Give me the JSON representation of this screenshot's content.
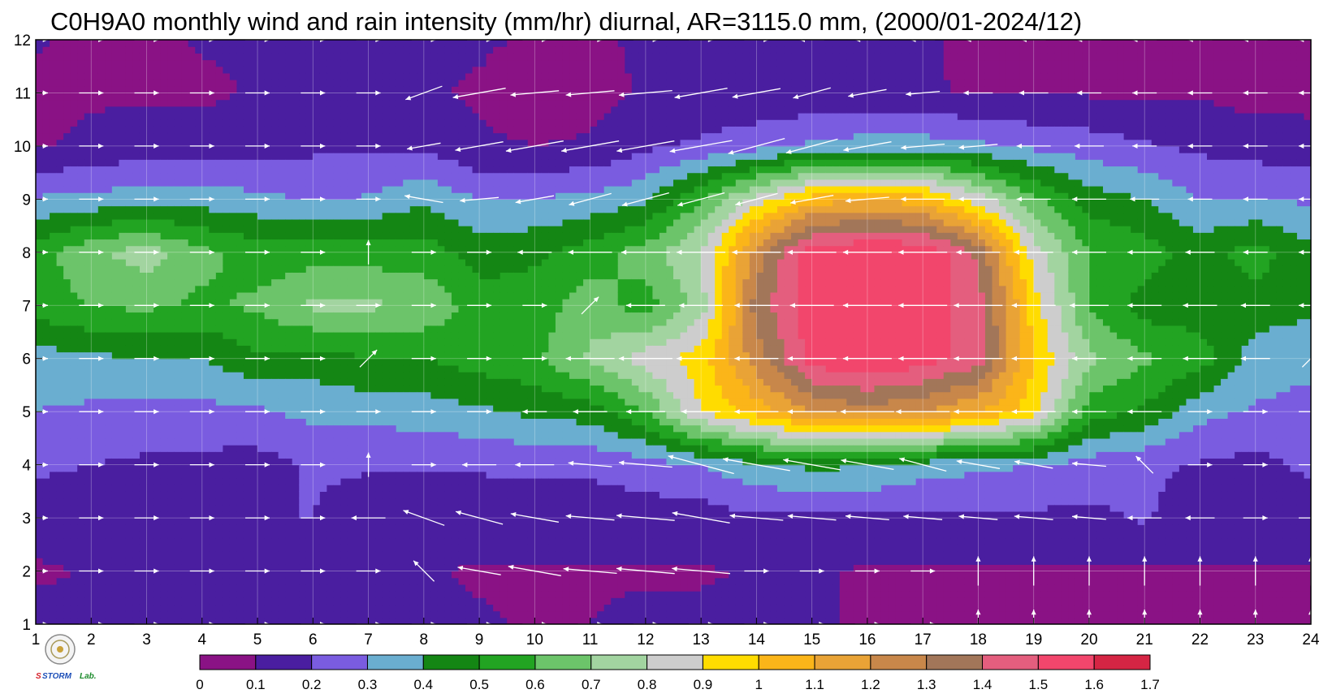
{
  "chart_data": {
    "type": "heatmap",
    "title": "C0H9A0 monthly wind and rain intensity (mm/hr) diurnal, AR=3115.0 mm, (2000/01-2024/12)",
    "xlabel": "",
    "ylabel": "",
    "x_ticks": [
      "1",
      "2",
      "3",
      "4",
      "5",
      "6",
      "7",
      "8",
      "9",
      "10",
      "11",
      "12",
      "13",
      "14",
      "15",
      "16",
      "17",
      "18",
      "19",
      "20",
      "21",
      "22",
      "23",
      "24"
    ],
    "y_ticks": [
      "1",
      "2",
      "3",
      "4",
      "5",
      "6",
      "7",
      "8",
      "9",
      "10",
      "11",
      "12"
    ],
    "xlim": [
      1,
      24
    ],
    "ylim": [
      1,
      12
    ],
    "grid": true,
    "x": [
      1,
      2,
      3,
      4,
      5,
      6,
      7,
      8,
      9,
      10,
      11,
      12,
      13,
      14,
      15,
      16,
      17,
      18,
      19,
      20,
      21,
      22,
      23,
      24
    ],
    "y": [
      1,
      2,
      3,
      4,
      5,
      6,
      7,
      8,
      9,
      10,
      11,
      12
    ],
    "z": [
      [
        0.15,
        0.12,
        0.1,
        0.1,
        0.11,
        0.11,
        0.11,
        0.11,
        0.11,
        0.09,
        0.1,
        0.12,
        0.12,
        0.11,
        0.11,
        0.09,
        0.09,
        0.09,
        0.09,
        0.09,
        0.09,
        0.09,
        0.09,
        0.09
      ],
      [
        0.08,
        0.11,
        0.11,
        0.11,
        0.11,
        0.11,
        0.11,
        0.11,
        0.09,
        0.09,
        0.09,
        0.09,
        0.09,
        0.11,
        0.11,
        0.09,
        0.09,
        0.09,
        0.09,
        0.09,
        0.09,
        0.09,
        0.09,
        0.09
      ],
      [
        0.17,
        0.16,
        0.15,
        0.15,
        0.2,
        0.2,
        0.15,
        0.15,
        0.15,
        0.15,
        0.15,
        0.15,
        0.15,
        0.18,
        0.18,
        0.18,
        0.18,
        0.18,
        0.18,
        0.18,
        0.21,
        0.15,
        0.15,
        0.15
      ],
      [
        0.21,
        0.2,
        0.18,
        0.17,
        0.16,
        0.21,
        0.21,
        0.21,
        0.21,
        0.22,
        0.22,
        0.25,
        0.3,
        0.38,
        0.42,
        0.41,
        0.35,
        0.32,
        0.3,
        0.25,
        0.22,
        0.19,
        0.17,
        0.22
      ],
      [
        0.3,
        0.28,
        0.27,
        0.27,
        0.28,
        0.33,
        0.33,
        0.35,
        0.38,
        0.42,
        0.45,
        0.6,
        0.9,
        1.05,
        1.2,
        1.25,
        1.2,
        1.1,
        0.95,
        0.55,
        0.48,
        0.33,
        0.29,
        0.26
      ],
      [
        0.35,
        0.38,
        0.4,
        0.4,
        0.48,
        0.45,
        0.5,
        0.5,
        0.55,
        0.58,
        0.72,
        0.85,
        0.95,
        1.25,
        1.55,
        1.6,
        1.55,
        1.45,
        1.0,
        0.72,
        0.62,
        0.55,
        0.35,
        0.33
      ],
      [
        0.55,
        0.6,
        0.62,
        0.58,
        0.62,
        0.72,
        0.72,
        0.68,
        0.55,
        0.55,
        0.65,
        0.55,
        0.75,
        1.35,
        1.55,
        1.6,
        1.55,
        1.45,
        0.95,
        0.6,
        0.45,
        0.45,
        0.45,
        0.42
      ],
      [
        0.55,
        0.68,
        0.75,
        0.63,
        0.55,
        0.55,
        0.55,
        0.55,
        0.45,
        0.48,
        0.55,
        0.65,
        0.8,
        1.25,
        1.58,
        1.6,
        1.6,
        1.38,
        0.85,
        0.6,
        0.55,
        0.45,
        0.55,
        0.42
      ],
      [
        0.31,
        0.33,
        0.35,
        0.35,
        0.33,
        0.29,
        0.31,
        0.38,
        0.3,
        0.3,
        0.33,
        0.38,
        0.6,
        0.85,
        1.05,
        1.1,
        1.05,
        0.85,
        0.62,
        0.45,
        0.4,
        0.3,
        0.29,
        0.29
      ],
      [
        0.09,
        0.12,
        0.15,
        0.15,
        0.15,
        0.18,
        0.19,
        0.18,
        0.11,
        0.1,
        0.11,
        0.18,
        0.22,
        0.26,
        0.32,
        0.35,
        0.35,
        0.32,
        0.28,
        0.25,
        0.21,
        0.18,
        0.16,
        0.15
      ],
      [
        0.07,
        0.09,
        0.08,
        0.08,
        0.11,
        0.11,
        0.11,
        0.11,
        0.09,
        0.07,
        0.07,
        0.11,
        0.12,
        0.12,
        0.12,
        0.11,
        0.11,
        0.09,
        0.09,
        0.09,
        0.09,
        0.09,
        0.06,
        0.06
      ],
      [
        0.11,
        0.08,
        0.08,
        0.11,
        0.11,
        0.11,
        0.11,
        0.11,
        0.11,
        0.09,
        0.09,
        0.11,
        0.11,
        0.11,
        0.11,
        0.11,
        0.11,
        0.08,
        0.08,
        0.08,
        0.08,
        0.08,
        0.08,
        0.08
      ]
    ],
    "colorbar": {
      "levels": [
        0,
        0.1,
        0.2,
        0.3,
        0.4,
        0.5,
        0.6,
        0.7,
        0.8,
        0.9,
        1,
        1.1,
        1.2,
        1.3,
        1.4,
        1.5,
        1.6,
        1.7
      ],
      "labels": [
        "0",
        "0.1",
        "0.2",
        "0.3",
        "0.4",
        "0.5",
        "0.6",
        "0.7",
        "0.8",
        "0.9",
        "1",
        "1.1",
        "1.2",
        "1.3",
        "1.4",
        "1.5",
        "1.6",
        "1.7"
      ],
      "colors": [
        "#8a1285",
        "#4a1ea0",
        "#7a5ce0",
        "#6aaed0",
        "#148614",
        "#22a422",
        "#6cc46a",
        "#a2d4a0",
        "#cdcdcd",
        "#ffdc00",
        "#fbb519",
        "#e9a336",
        "#c8874a",
        "#a27659",
        "#e45e7e",
        "#f2466c",
        "#d52544"
      ],
      "contour_color": "#f2a32a"
    },
    "wind": {
      "arrow_color": "#ffffff",
      "angle_deg": [
        [
          0,
          0,
          0,
          0,
          0,
          0,
          0,
          0,
          0,
          0,
          0,
          0,
          0,
          0,
          0,
          0,
          0,
          90,
          90,
          90,
          90,
          90,
          90,
          90
        ],
        [
          0,
          0,
          0,
          0,
          0,
          0,
          0,
          135,
          170,
          170,
          175,
          175,
          175,
          0,
          0,
          0,
          0,
          90,
          90,
          90,
          90,
          90,
          90,
          90
        ],
        [
          0,
          0,
          0,
          0,
          0,
          0,
          180,
          160,
          165,
          170,
          175,
          175,
          170,
          175,
          175,
          175,
          175,
          175,
          175,
          175,
          180,
          180,
          0,
          0
        ],
        [
          0,
          0,
          0,
          0,
          0,
          0,
          90,
          0,
          180,
          180,
          175,
          175,
          165,
          170,
          170,
          170,
          165,
          170,
          170,
          175,
          135,
          0,
          0,
          0
        ],
        [
          0,
          0,
          0,
          0,
          0,
          0,
          0,
          0,
          0,
          180,
          180,
          180,
          180,
          180,
          180,
          180,
          180,
          180,
          180,
          180,
          180,
          0,
          0,
          0
        ],
        [
          0,
          0,
          0,
          0,
          0,
          0,
          45,
          0,
          0,
          0,
          180,
          180,
          180,
          180,
          180,
          180,
          180,
          180,
          180,
          180,
          180,
          180,
          180,
          45
        ],
        [
          0,
          0,
          0,
          0,
          0,
          0,
          0,
          0,
          0,
          0,
          45,
          180,
          180,
          180,
          180,
          180,
          180,
          180,
          180,
          180,
          180,
          180,
          180,
          180
        ],
        [
          0,
          0,
          0,
          0,
          0,
          0,
          90,
          0,
          0,
          180,
          180,
          180,
          180,
          180,
          180,
          180,
          180,
          180,
          180,
          180,
          180,
          180,
          180,
          180
        ],
        [
          0,
          0,
          0,
          0,
          0,
          0,
          0,
          170,
          185,
          190,
          195,
          195,
          195,
          195,
          190,
          185,
          180,
          180,
          180,
          180,
          180,
          180,
          180,
          180
        ],
        [
          0,
          0,
          0,
          0,
          0,
          0,
          0,
          190,
          190,
          190,
          190,
          190,
          190,
          195,
          195,
          190,
          185,
          185,
          180,
          180,
          180,
          180,
          180,
          180
        ],
        [
          0,
          0,
          0,
          0,
          0,
          0,
          0,
          200,
          190,
          185,
          185,
          185,
          190,
          190,
          195,
          190,
          185,
          180,
          180,
          180,
          180,
          180,
          180,
          180
        ],
        [
          0,
          0,
          0,
          0,
          0,
          0,
          0,
          0,
          0,
          0,
          0,
          0,
          0,
          0,
          180,
          180,
          180,
          180,
          180,
          180,
          180,
          180,
          180,
          180
        ]
      ],
      "length": [
        [
          0.3,
          0.3,
          0.3,
          0.3,
          0.3,
          0.3,
          0.3,
          0.3,
          0.3,
          0.3,
          0.3,
          0.3,
          0.3,
          0.3,
          0.3,
          0.3,
          0.3,
          0.4,
          0.4,
          0.4,
          0.4,
          0.4,
          0.4,
          0.4
        ],
        [
          0.3,
          0.3,
          0.3,
          0.3,
          0.3,
          0.3,
          0.3,
          0.4,
          0.7,
          0.9,
          0.9,
          1.0,
          1.0,
          0.3,
          0.3,
          0.3,
          0.3,
          0.4,
          0.4,
          0.4,
          0.4,
          0.4,
          0.4,
          0.4
        ],
        [
          0.3,
          0.3,
          0.3,
          0.3,
          0.3,
          0.3,
          0.5,
          0.7,
          0.8,
          0.8,
          0.8,
          1.0,
          1.0,
          0.9,
          0.8,
          0.7,
          0.6,
          0.6,
          0.6,
          0.5,
          0.5,
          0.4,
          0.3,
          0.3
        ],
        [
          0.3,
          0.3,
          0.3,
          0.3,
          0.3,
          0.3,
          0.3,
          0.3,
          0.5,
          0.6,
          0.7,
          0.9,
          1.2,
          1.2,
          1.0,
          0.9,
          0.8,
          0.7,
          0.6,
          0.5,
          0.3,
          0.3,
          0.3,
          0.3
        ],
        [
          0.3,
          0.3,
          0.3,
          0.3,
          0.3,
          0.3,
          0.3,
          0.3,
          0.3,
          0.3,
          0.5,
          0.6,
          0.6,
          0.7,
          0.8,
          0.9,
          0.9,
          0.8,
          0.7,
          0.5,
          0.5,
          0.3,
          0.3,
          0.3
        ],
        [
          0.3,
          0.3,
          0.3,
          0.3,
          0.3,
          0.3,
          0.3,
          0.3,
          0.3,
          0.3,
          0.8,
          0.9,
          0.8,
          0.7,
          0.8,
          0.8,
          0.8,
          0.8,
          0.7,
          0.5,
          0.5,
          0.5,
          0.4,
          0.3
        ],
        [
          0.3,
          0.3,
          0.3,
          0.3,
          0.3,
          0.3,
          0.3,
          0.3,
          0.3,
          0.3,
          0.3,
          0.6,
          0.7,
          0.7,
          0.7,
          0.8,
          0.8,
          0.8,
          0.7,
          0.6,
          0.5,
          0.5,
          0.4,
          0.3
        ],
        [
          0.3,
          0.3,
          0.3,
          0.3,
          0.3,
          0.3,
          0.3,
          0.3,
          0.3,
          0.5,
          0.7,
          0.8,
          0.8,
          0.8,
          0.8,
          0.8,
          0.8,
          0.7,
          0.6,
          0.5,
          0.5,
          0.4,
          0.3,
          0.3
        ],
        [
          0.3,
          0.3,
          0.3,
          0.3,
          0.3,
          0.3,
          0.3,
          0.6,
          0.6,
          0.6,
          0.7,
          0.8,
          0.8,
          0.7,
          0.7,
          0.7,
          0.7,
          0.6,
          0.5,
          0.5,
          0.4,
          0.3,
          0.3,
          0.3
        ],
        [
          0.3,
          0.3,
          0.3,
          0.3,
          0.3,
          0.3,
          0.3,
          0.5,
          0.8,
          1.0,
          1.0,
          1.0,
          1.1,
          1.0,
          0.9,
          0.8,
          0.7,
          0.6,
          0.5,
          0.4,
          0.3,
          0.3,
          0.3,
          0.3
        ],
        [
          0.3,
          0.3,
          0.3,
          0.3,
          0.3,
          0.3,
          0.3,
          0.6,
          0.9,
          0.8,
          0.8,
          0.9,
          0.9,
          0.8,
          0.6,
          0.6,
          0.5,
          0.4,
          0.4,
          0.3,
          0.3,
          0.3,
          0.3,
          0.3
        ],
        [
          0.3,
          0.3,
          0.3,
          0.3,
          0.3,
          0.3,
          0.3,
          0.3,
          0.3,
          0.3,
          0.3,
          0.3,
          0.3,
          0.3,
          0.3,
          0.3,
          0.3,
          0.3,
          0.3,
          0.3,
          0.3,
          0.3,
          0.3,
          0.3
        ]
      ]
    }
  }
}
